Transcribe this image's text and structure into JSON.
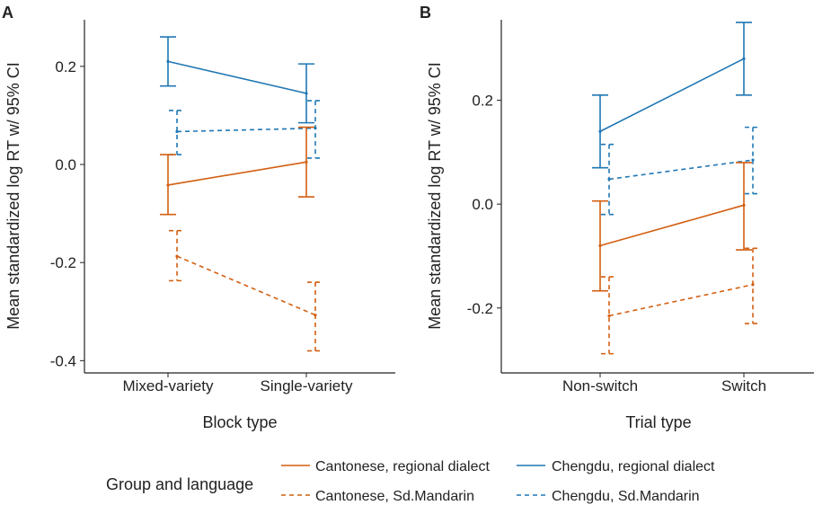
{
  "colors": {
    "cantonese": "#d35f11",
    "chengdu": "#1f77b4"
  },
  "legend": {
    "title": "Group and language",
    "items": [
      {
        "label": "Cantonese, regional dialect",
        "color": "#d35f11",
        "dashed": false
      },
      {
        "label": "Chengdu, regional dialect",
        "color": "#1f77b4",
        "dashed": false
      },
      {
        "label": "Cantonese, Sd.Mandarin",
        "color": "#d35f11",
        "dashed": true
      },
      {
        "label": "Chengdu, Sd.Mandarin",
        "color": "#1f77b4",
        "dashed": true
      }
    ]
  },
  "chart_data": [
    {
      "panel": "A",
      "type": "line",
      "xlabel": "Block type",
      "ylabel": "Mean standardized log RT w/ 95% CI",
      "categories": [
        "Mixed-variety",
        "Single-variety"
      ],
      "ylim": [
        -0.425,
        0.295
      ],
      "yticks": [
        0.2,
        0.0,
        -0.2,
        -0.4
      ],
      "ytick_labels": [
        "0.2",
        "0.0",
        "-0.2",
        "-0.4"
      ],
      "series": [
        {
          "name": "Chengdu, regional dialect",
          "color": "#1f77b4",
          "dashed": false,
          "offset": 0,
          "values": [
            0.21,
            0.145
          ],
          "lower": [
            0.16,
            0.085
          ],
          "upper": [
            0.26,
            0.205
          ]
        },
        {
          "name": "Chengdu, Sd.Mandarin",
          "color": "#1f77b4",
          "dashed": true,
          "offset": 1,
          "values": [
            0.067,
            0.074
          ],
          "lower": [
            0.02,
            0.013
          ],
          "upper": [
            0.11,
            0.13
          ]
        },
        {
          "name": "Cantonese, regional dialect",
          "color": "#d35f11",
          "dashed": false,
          "offset": 0,
          "values": [
            -0.042,
            0.005
          ],
          "lower": [
            -0.102,
            -0.066
          ],
          "upper": [
            0.02,
            0.076
          ]
        },
        {
          "name": "Cantonese, Sd.Mandarin",
          "color": "#d35f11",
          "dashed": true,
          "offset": 1,
          "values": [
            -0.187,
            -0.307
          ],
          "lower": [
            -0.237,
            -0.38
          ],
          "upper": [
            -0.135,
            -0.24
          ]
        }
      ]
    },
    {
      "panel": "B",
      "type": "line",
      "xlabel": "Trial type",
      "ylabel": "Mean standardized log RT w/ 95% CI",
      "categories": [
        "Non-switch",
        "Switch"
      ],
      "ylim": [
        -0.325,
        0.355
      ],
      "yticks": [
        0.2,
        0.0,
        -0.2
      ],
      "ytick_labels": [
        "0.2",
        "0.0",
        "-0.2"
      ],
      "series": [
        {
          "name": "Chengdu, regional dialect",
          "color": "#1f77b4",
          "dashed": false,
          "offset": 0,
          "values": [
            0.14,
            0.28
          ],
          "lower": [
            0.07,
            0.21
          ],
          "upper": [
            0.21,
            0.35
          ]
        },
        {
          "name": "Chengdu, Sd.Mandarin",
          "color": "#1f77b4",
          "dashed": true,
          "offset": 1,
          "values": [
            0.048,
            0.085
          ],
          "lower": [
            -0.02,
            0.02
          ],
          "upper": [
            0.115,
            0.148
          ]
        },
        {
          "name": "Cantonese, regional dialect",
          "color": "#d35f11",
          "dashed": false,
          "offset": 0,
          "values": [
            -0.08,
            -0.002
          ],
          "lower": [
            -0.167,
            -0.088
          ],
          "upper": [
            0.006,
            0.08
          ]
        },
        {
          "name": "Cantonese, Sd.Mandarin",
          "color": "#d35f11",
          "dashed": true,
          "offset": 1,
          "values": [
            -0.215,
            -0.155
          ],
          "lower": [
            -0.288,
            -0.23
          ],
          "upper": [
            -0.14,
            -0.085
          ]
        }
      ]
    }
  ]
}
